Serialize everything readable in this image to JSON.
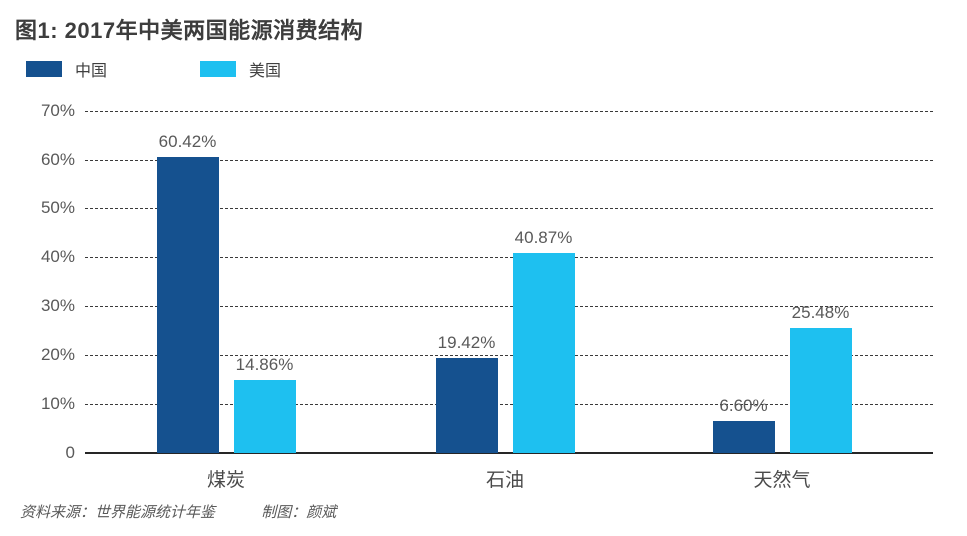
{
  "title": "图1: 2017年中美两国能源消费结构",
  "legend": {
    "items": [
      {
        "label": "中国",
        "color": "#15518F"
      },
      {
        "label": "美国",
        "color": "#1EC0F0"
      }
    ]
  },
  "chart_data": {
    "type": "bar",
    "title": "图1: 2017年中美两国能源消费结构",
    "categories": [
      "煤炭",
      "石油",
      "天然气"
    ],
    "series": [
      {
        "name": "中国",
        "color": "#15518F",
        "values": [
          60.42,
          19.42,
          6.6
        ],
        "labels": [
          "60.42%",
          "19.42%",
          "6.60%"
        ]
      },
      {
        "name": "美国",
        "color": "#1EC0F0",
        "values": [
          14.86,
          40.87,
          25.48
        ],
        "labels": [
          "14.86%",
          "40.87%",
          "25.48%"
        ]
      }
    ],
    "xlabel": "",
    "ylabel": "",
    "ylim": [
      0,
      70
    ],
    "yticks": [
      {
        "label": "70%",
        "value": 70
      },
      {
        "label": "60%",
        "value": 60
      },
      {
        "label": "50%",
        "value": 50
      },
      {
        "label": "40%",
        "value": 40
      },
      {
        "label": "30%",
        "value": 30
      },
      {
        "label": "20%",
        "value": 20
      },
      {
        "label": "10%",
        "value": 10
      },
      {
        "label": "0",
        "value": 0
      }
    ],
    "grid": "horizontal-dashed",
    "legend_position": "top-left"
  },
  "footer": {
    "source": "资料来源：世界能源统计年鉴",
    "credit": "制图：颜斌"
  }
}
